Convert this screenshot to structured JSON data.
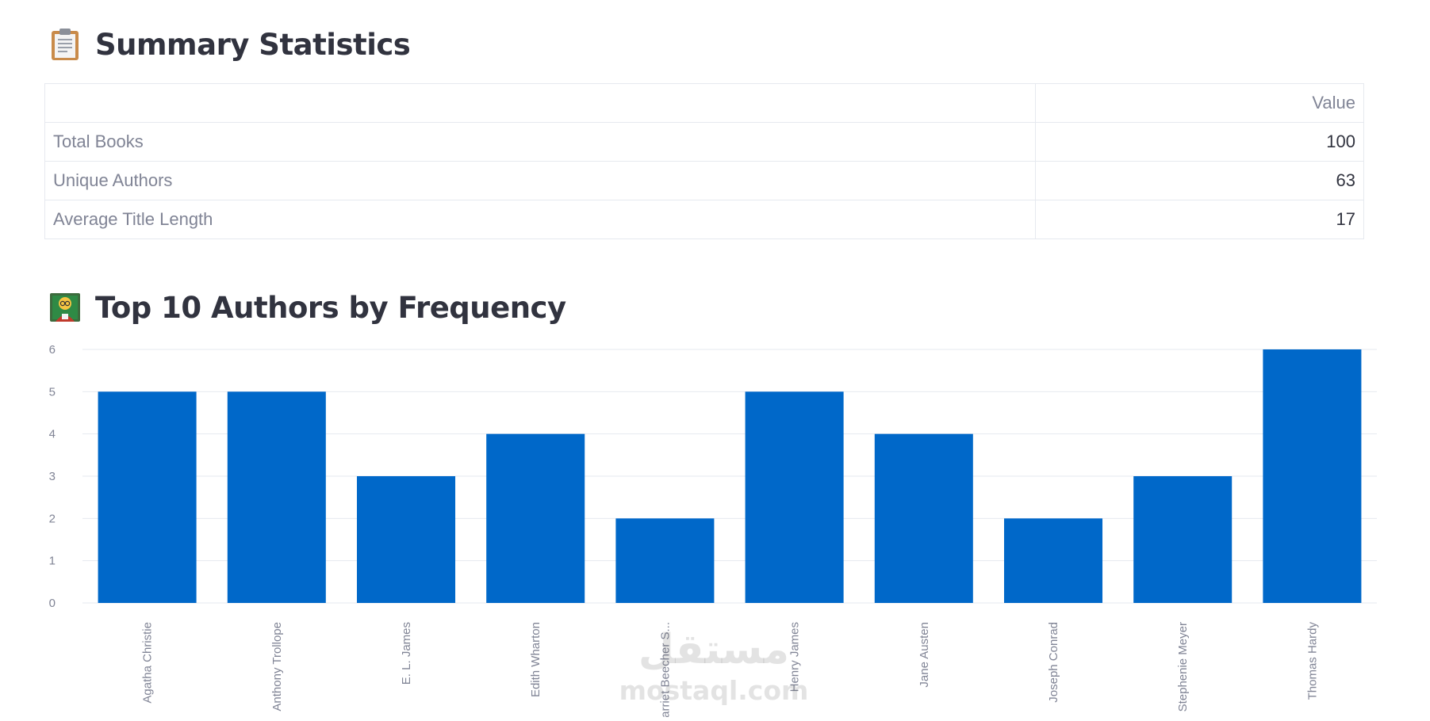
{
  "summary": {
    "title": "Summary Statistics",
    "icon": "clipboard-icon",
    "table": {
      "columns": [
        "",
        "Value"
      ],
      "rows": [
        {
          "label": "Total Books",
          "value": "100"
        },
        {
          "label": "Unique Authors",
          "value": "63"
        },
        {
          "label": "Average Title Length",
          "value": "17"
        }
      ]
    }
  },
  "authors_section": {
    "title": "Top 10 Authors by Frequency",
    "icon": "teacher-icon"
  },
  "chart_data": {
    "type": "bar",
    "title": "",
    "xlabel": "",
    "ylabel": "",
    "categories": [
      "Agatha Christie",
      "Anthony Trollope",
      "E. L. James",
      "Edith Wharton",
      "Harriet Beecher S...",
      "Henry James",
      "Jane Austen",
      "Joseph Conrad",
      "Stephenie Meyer",
      "Thomas Hardy"
    ],
    "values": [
      5,
      5,
      3,
      4,
      2,
      5,
      4,
      2,
      3,
      6
    ],
    "yticks": [
      0,
      1,
      2,
      3,
      4,
      5,
      6
    ],
    "ylim": [
      0,
      6
    ],
    "grid": true,
    "bar_color": "#0068c9"
  },
  "watermark": {
    "arabic": "مستقل",
    "latin": "mostaql.com"
  }
}
